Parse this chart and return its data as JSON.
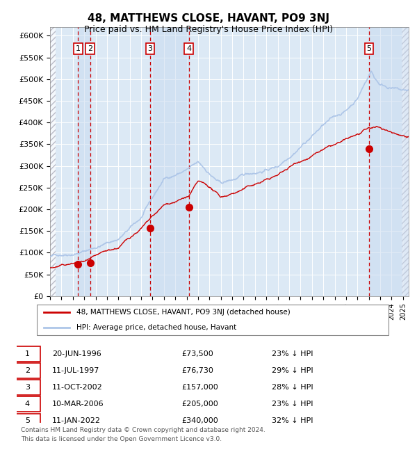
{
  "title": "48, MATTHEWS CLOSE, HAVANT, PO9 3NJ",
  "subtitle": "Price paid vs. HM Land Registry's House Price Index (HPI)",
  "ylim": [
    0,
    620000
  ],
  "yticks": [
    0,
    50000,
    100000,
    150000,
    200000,
    250000,
    300000,
    350000,
    400000,
    450000,
    500000,
    550000,
    600000
  ],
  "ytick_labels": [
    "£0",
    "£50K",
    "£100K",
    "£150K",
    "£200K",
    "£250K",
    "£300K",
    "£350K",
    "£400K",
    "£450K",
    "£500K",
    "£550K",
    "£600K"
  ],
  "xlim_start": 1994.0,
  "xlim_end": 2025.5,
  "hpi_color": "#aec6e8",
  "price_color": "#cc0000",
  "dot_color": "#cc0000",
  "dashed_color": "#cc0000",
  "bg_color": "#dce9f5",
  "hatch_color": "#c0c0c8",
  "legend_label_red": "48, MATTHEWS CLOSE, HAVANT, PO9 3NJ (detached house)",
  "legend_label_blue": "HPI: Average price, detached house, Havant",
  "transactions": [
    {
      "num": 1,
      "date": "20-JUN-1996",
      "year": 1996.46,
      "price": 73500,
      "pct": "23%",
      "dir": "↓"
    },
    {
      "num": 2,
      "date": "11-JUL-1997",
      "year": 1997.53,
      "price": 76730,
      "pct": "29%",
      "dir": "↓"
    },
    {
      "num": 3,
      "date": "11-OCT-2002",
      "year": 2002.78,
      "price": 157000,
      "pct": "28%",
      "dir": "↓"
    },
    {
      "num": 4,
      "date": "10-MAR-2006",
      "year": 2006.19,
      "price": 205000,
      "pct": "23%",
      "dir": "↓"
    },
    {
      "num": 5,
      "date": "11-JAN-2022",
      "year": 2022.03,
      "price": 340000,
      "pct": "32%",
      "dir": "↓"
    }
  ],
  "footer1": "Contains HM Land Registry data © Crown copyright and database right 2024.",
  "footer2": "This data is licensed under the Open Government Licence v3.0."
}
